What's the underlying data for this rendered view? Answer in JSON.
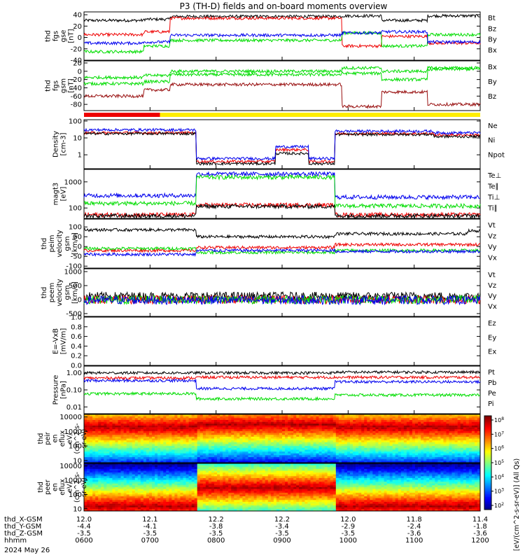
{
  "title": "P3 (TH-D) fields and on-board moments overview",
  "date_label": "2024 May 26",
  "colors": {
    "black": "#000000",
    "red": "#ee0000",
    "green": "#00dd00",
    "blue": "#0000ee",
    "yellow": "#ffee00",
    "darkred": "#991111"
  },
  "mode_bar": {
    "segments": [
      {
        "color": "#ee0000",
        "from_hour": 6.0,
        "to_hour": 7.15
      },
      {
        "color": "#ffee00",
        "from_hour": 7.15,
        "to_hour": 12.0
      }
    ]
  },
  "chart_data": [
    {
      "type": "line",
      "id": "fgs_gse",
      "ylabel": [
        "thd",
        "fgs",
        "gse",
        "[nT]"
      ],
      "ylim": [
        -40,
        45
      ],
      "yticks": [
        -40,
        -20,
        0,
        20,
        40
      ],
      "series": [
        {
          "name": "Bt",
          "color": "#000000",
          "segments": [
            {
              "from": 6.0,
              "to": 6.9,
              "v": 30
            },
            {
              "from": 6.9,
              "to": 7.3,
              "v": 32
            },
            {
              "from": 7.3,
              "to": 9.9,
              "v": 37
            },
            {
              "from": 9.9,
              "to": 10.5,
              "v": 38
            },
            {
              "from": 10.5,
              "to": 11.2,
              "v": 30
            },
            {
              "from": 11.2,
              "to": 12.0,
              "v": 38
            }
          ]
        },
        {
          "name": "Bz",
          "color": "#ee0000",
          "segments": [
            {
              "from": 6.0,
              "to": 6.9,
              "v": 5
            },
            {
              "from": 6.9,
              "to": 7.3,
              "v": 10
            },
            {
              "from": 7.3,
              "to": 9.9,
              "v": 34
            },
            {
              "from": 9.9,
              "to": 10.5,
              "v": -15
            },
            {
              "from": 10.5,
              "to": 11.2,
              "v": 2
            },
            {
              "from": 11.2,
              "to": 12.0,
              "v": -10
            }
          ]
        },
        {
          "name": "By",
          "color": "#00dd00",
          "segments": [
            {
              "from": 6.0,
              "to": 6.9,
              "v": -25
            },
            {
              "from": 6.9,
              "to": 7.3,
              "v": -15
            },
            {
              "from": 7.3,
              "to": 9.9,
              "v": -5
            },
            {
              "from": 9.9,
              "to": 10.5,
              "v": 8
            },
            {
              "from": 10.5,
              "to": 11.2,
              "v": -15
            },
            {
              "from": 11.2,
              "to": 12.0,
              "v": 5
            }
          ]
        },
        {
          "name": "Bx",
          "color": "#0000ee",
          "segments": [
            {
              "from": 6.0,
              "to": 6.9,
              "v": -10
            },
            {
              "from": 6.9,
              "to": 7.3,
              "v": -8
            },
            {
              "from": 7.3,
              "to": 9.9,
              "v": 4
            },
            {
              "from": 9.9,
              "to": 10.5,
              "v": 8
            },
            {
              "from": 10.5,
              "to": 11.2,
              "v": 10
            },
            {
              "from": 11.2,
              "to": 12.0,
              "v": -8
            }
          ]
        }
      ]
    },
    {
      "type": "line",
      "id": "fgs_gsm",
      "ylabel": [
        "thd",
        "fgs",
        "gsm",
        "[nT]"
      ],
      "ylim": [
        -95,
        25
      ],
      "yticks": [
        -80,
        -60,
        -40,
        -20,
        0,
        20
      ],
      "series": [
        {
          "name": "Bx",
          "color": "#00dd00",
          "segments": [
            {
              "from": 6.0,
              "to": 6.9,
              "v": -30
            },
            {
              "from": 6.9,
              "to": 7.3,
              "v": -25
            },
            {
              "from": 7.3,
              "to": 9.9,
              "v": -8
            },
            {
              "from": 9.9,
              "to": 10.5,
              "v": -5
            },
            {
              "from": 10.5,
              "to": 11.2,
              "v": -20
            },
            {
              "from": 11.2,
              "to": 12.0,
              "v": 5
            }
          ]
        },
        {
          "name": "By",
          "color": "#00dd00",
          "segments": [
            {
              "from": 6.0,
              "to": 6.9,
              "v": -15
            },
            {
              "from": 6.9,
              "to": 7.3,
              "v": -10
            },
            {
              "from": 7.3,
              "to": 9.9,
              "v": 0
            },
            {
              "from": 9.9,
              "to": 10.5,
              "v": 8
            },
            {
              "from": 10.5,
              "to": 11.2,
              "v": 0
            },
            {
              "from": 11.2,
              "to": 12.0,
              "v": 8
            }
          ]
        },
        {
          "name": "Bz",
          "color": "#991111",
          "segments": [
            {
              "from": 6.0,
              "to": 6.9,
              "v": -60
            },
            {
              "from": 6.9,
              "to": 7.3,
              "v": -45
            },
            {
              "from": 7.3,
              "to": 9.9,
              "v": -32
            },
            {
              "from": 9.9,
              "to": 10.5,
              "v": -85
            },
            {
              "from": 10.5,
              "to": 11.2,
              "v": -50
            },
            {
              "from": 11.2,
              "to": 12.0,
              "v": -80
            }
          ]
        }
      ]
    },
    {
      "type": "line",
      "id": "density",
      "scale": "log",
      "ylabel": [
        "Density",
        "[cm-3]"
      ],
      "ylim": [
        0.15,
        120
      ],
      "yticks": [
        1,
        10,
        100
      ],
      "ytick_labels": [
        "1",
        "10",
        "100"
      ],
      "series": [
        {
          "name": "Ne",
          "color": "#ee0000",
          "segments": [
            {
              "from": 6.0,
              "to": 7.7,
              "v": 20
            },
            {
              "from": 7.7,
              "to": 8.9,
              "v": 0.4
            },
            {
              "from": 8.9,
              "to": 9.4,
              "v": 2
            },
            {
              "from": 9.4,
              "to": 9.8,
              "v": 0.4
            },
            {
              "from": 9.8,
              "to": 11.3,
              "v": 18
            },
            {
              "from": 11.3,
              "to": 12.0,
              "v": 15
            }
          ]
        },
        {
          "name": "Ni",
          "color": "#000000",
          "segments": [
            {
              "from": 6.0,
              "to": 7.7,
              "v": 18
            },
            {
              "from": 7.7,
              "to": 8.9,
              "v": 0.3
            },
            {
              "from": 8.9,
              "to": 9.4,
              "v": 1.2
            },
            {
              "from": 9.4,
              "to": 9.8,
              "v": 0.3
            },
            {
              "from": 9.8,
              "to": 11.3,
              "v": 16
            },
            {
              "from": 11.3,
              "to": 12.0,
              "v": 12
            }
          ]
        },
        {
          "name": "Npot",
          "color": "#0000ee",
          "segments": [
            {
              "from": 6.0,
              "to": 7.7,
              "v": 30
            },
            {
              "from": 7.7,
              "to": 8.9,
              "v": 0.6
            },
            {
              "from": 8.9,
              "to": 9.4,
              "v": 3
            },
            {
              "from": 9.4,
              "to": 9.8,
              "v": 0.6
            },
            {
              "from": 9.8,
              "to": 11.3,
              "v": 25
            },
            {
              "from": 11.3,
              "to": 12.0,
              "v": 20
            }
          ]
        }
      ]
    },
    {
      "type": "line",
      "id": "temp",
      "scale": "log",
      "ylabel": [
        "magt3",
        "[eV]"
      ],
      "ylim": [
        40,
        3000
      ],
      "yticks": [
        100,
        1000
      ],
      "ytick_labels": [
        "100",
        "1000"
      ],
      "series": [
        {
          "name": "Te⊥",
          "color": "#ee0000",
          "segments": [
            {
              "from": 6.0,
              "to": 7.7,
              "v": 55
            },
            {
              "from": 7.7,
              "to": 9.8,
              "v": 130
            },
            {
              "from": 9.8,
              "to": 12.0,
              "v": 55
            }
          ]
        },
        {
          "name": "Te∥",
          "color": "#000000",
          "segments": [
            {
              "from": 6.0,
              "to": 7.7,
              "v": 50
            },
            {
              "from": 7.7,
              "to": 9.8,
              "v": 115
            },
            {
              "from": 9.8,
              "to": 12.0,
              "v": 50
            }
          ]
        },
        {
          "name": "Ti⊥",
          "color": "#0000ee",
          "segments": [
            {
              "from": 6.0,
              "to": 7.7,
              "v": 300
            },
            {
              "from": 7.7,
              "to": 9.8,
              "v": 2000
            },
            {
              "from": 9.8,
              "to": 12.0,
              "v": 260
            }
          ]
        },
        {
          "name": "Ti∥",
          "color": "#00dd00",
          "segments": [
            {
              "from": 6.0,
              "to": 7.7,
              "v": 150
            },
            {
              "from": 7.7,
              "to": 9.8,
              "v": 1500
            },
            {
              "from": 9.8,
              "to": 12.0,
              "v": 120
            }
          ]
        }
      ]
    },
    {
      "type": "line",
      "id": "peim_vel",
      "ylabel": [
        "thd",
        "peim",
        "velocity",
        "gsm",
        "[km/s]"
      ],
      "ylim": [
        -110,
        140
      ],
      "yticks": [
        -100,
        -50,
        0,
        50,
        100
      ],
      "series": [
        {
          "name": "Vt",
          "color": "#000000",
          "segments": [
            {
              "from": 6.0,
              "to": 7.7,
              "v": 85
            },
            {
              "from": 7.7,
              "to": 9.8,
              "v": 50
            },
            {
              "from": 9.8,
              "to": 11.8,
              "v": 65
            },
            {
              "from": 11.8,
              "to": 12.0,
              "v": 80
            }
          ]
        },
        {
          "name": "Vz",
          "color": "#ee0000",
          "segments": [
            {
              "from": 6.0,
              "to": 7.7,
              "v": -20
            },
            {
              "from": 7.7,
              "to": 9.8,
              "v": -5
            },
            {
              "from": 9.8,
              "to": 12.0,
              "v": 10
            }
          ]
        },
        {
          "name": "Vy",
          "color": "#00dd00",
          "segments": [
            {
              "from": 6.0,
              "to": 7.7,
              "v": -10
            },
            {
              "from": 7.7,
              "to": 9.8,
              "v": -30
            },
            {
              "from": 9.8,
              "to": 12.0,
              "v": -20
            }
          ]
        },
        {
          "name": "Vx",
          "color": "#0000ee",
          "segments": [
            {
              "from": 6.0,
              "to": 7.7,
              "v": -40
            },
            {
              "from": 7.7,
              "to": 9.8,
              "v": -20
            },
            {
              "from": 9.8,
              "to": 12.0,
              "v": -25
            }
          ]
        }
      ]
    },
    {
      "type": "line",
      "id": "peem_vel",
      "ylabel": [
        "thd",
        "peem",
        "velocity",
        "gsm",
        "[km/s]"
      ],
      "ylim": [
        -600,
        1100
      ],
      "yticks": [
        -500,
        0,
        500,
        1000
      ],
      "series": [
        {
          "name": "Vt",
          "color": "#000000",
          "segments": [
            {
              "from": 6.0,
              "to": 12.0,
              "v": 120
            }
          ]
        },
        {
          "name": "Vz",
          "color": "#ee0000",
          "segments": [
            {
              "from": 6.0,
              "to": 12.0,
              "v": 0
            }
          ]
        },
        {
          "name": "Vy",
          "color": "#00dd00",
          "segments": [
            {
              "from": 6.0,
              "to": 12.0,
              "v": 0
            }
          ]
        },
        {
          "name": "Vx",
          "color": "#0000ee",
          "segments": [
            {
              "from": 6.0,
              "to": 12.0,
              "v": -20
            }
          ]
        }
      ]
    },
    {
      "type": "line",
      "id": "efield",
      "ylabel": [
        "E=-VxB",
        "[mV/m]"
      ],
      "ylim": [
        0,
        1
      ],
      "yticks": [
        0,
        0.2,
        0.4,
        0.6,
        0.8,
        1.0
      ],
      "ytick_labels": [
        "0.0",
        "0.2",
        "0.4",
        "0.6",
        "0.8",
        "1.0"
      ],
      "series": [
        {
          "name": "Ez",
          "color": "#ee0000",
          "segments": []
        },
        {
          "name": "Ey",
          "color": "#00dd00",
          "segments": []
        },
        {
          "name": "Ex",
          "color": "#0000ee",
          "segments": []
        }
      ]
    },
    {
      "type": "line",
      "id": "pressure",
      "scale": "log",
      "ylabel": [
        "Pressure",
        "[nPa]"
      ],
      "ylim": [
        0.004,
        2.5
      ],
      "yticks": [
        0.01,
        0.1,
        1.0
      ],
      "ytick_labels": [
        "0.01",
        "0.10",
        "1.00"
      ],
      "series": [
        {
          "name": "Pt",
          "color": "#000000",
          "segments": [
            {
              "from": 6.0,
              "to": 7.7,
              "v": 1.0
            },
            {
              "from": 7.7,
              "to": 9.8,
              "v": 1.0
            },
            {
              "from": 9.8,
              "to": 12.0,
              "v": 1.1
            }
          ]
        },
        {
          "name": "Pb",
          "color": "#ee0000",
          "segments": [
            {
              "from": 6.0,
              "to": 7.7,
              "v": 0.5
            },
            {
              "from": 7.7,
              "to": 9.8,
              "v": 0.55
            },
            {
              "from": 9.8,
              "to": 12.0,
              "v": 0.55
            }
          ]
        },
        {
          "name": "Pe",
          "color": "#00dd00",
          "segments": [
            {
              "from": 6.0,
              "to": 7.7,
              "v": 0.06
            },
            {
              "from": 7.7,
              "to": 9.8,
              "v": 0.03
            },
            {
              "from": 9.8,
              "to": 12.0,
              "v": 0.05
            }
          ]
        },
        {
          "name": "Pi",
          "color": "#0000ee",
          "segments": [
            {
              "from": 6.0,
              "to": 7.7,
              "v": 0.35
            },
            {
              "from": 7.7,
              "to": 9.8,
              "v": 0.12
            },
            {
              "from": 9.8,
              "to": 12.0,
              "v": 0.3
            }
          ]
        }
      ]
    },
    {
      "type": "heatmap",
      "id": "peir",
      "ylabel": [
        "thd",
        "peir",
        "en",
        "eflux",
        "eV/",
        "(cm^2-s-",
        "sr-eV)"
      ],
      "ylim": [
        7,
        15000
      ],
      "yticks": [
        10,
        100,
        1000,
        10000
      ],
      "ytick_labels": [
        "10",
        "100",
        "1000",
        "10000"
      ],
      "peak_ev": [
        {
          "from": 6.0,
          "to": 7.7,
          "v": 2000
        },
        {
          "from": 7.7,
          "to": 9.8,
          "v": 3000
        },
        {
          "from": 9.8,
          "to": 12.0,
          "v": 2000
        }
      ]
    },
    {
      "type": "heatmap",
      "id": "peer",
      "ylabel": [
        "thd",
        "peer",
        "en",
        "eflux",
        "eV/",
        "(cm^2-s-",
        "sr-eV)"
      ],
      "ylim": [
        7,
        15000
      ],
      "yticks": [
        10,
        100,
        1000,
        10000
      ],
      "ytick_labels": [
        "10",
        "100",
        "1000",
        "10000"
      ],
      "peak_ev": [
        {
          "from": 6.0,
          "to": 7.7,
          "v": 15
        },
        {
          "from": 7.7,
          "to": 9.8,
          "v": 300
        },
        {
          "from": 9.8,
          "to": 12.0,
          "v": 15
        }
      ]
    }
  ],
  "colorbar": {
    "label": "[eV/(cm^2-s-sr-eV)] (All Qs)",
    "ticks": [
      "10^8",
      "10^7",
      "10^6",
      "10^5",
      "10^4",
      "10^3",
      "10^2"
    ],
    "range": [
      2,
      8
    ]
  },
  "x_axis": {
    "ticks_hour": [
      6,
      7,
      8,
      9,
      10,
      11,
      12
    ],
    "row_labels": [
      "thd_X-GSM",
      "thd_Y-GSM",
      "thd_Z-GSM",
      "hhmm"
    ],
    "rows": [
      [
        "12.0",
        "12.1",
        "12.2",
        "12.2",
        "12.0",
        "11.8",
        "11.4"
      ],
      [
        "-4.4",
        "-4.1",
        "-3.8",
        "-3.4",
        "-2.9",
        "-2.4",
        "-1.8"
      ],
      [
        "-3.5",
        "-3.5",
        "-3.5",
        "-3.5",
        "-3.5",
        "-3.6",
        "-3.6"
      ],
      [
        "0600",
        "0700",
        "0800",
        "0900",
        "1000",
        "1100",
        "1200"
      ]
    ]
  }
}
